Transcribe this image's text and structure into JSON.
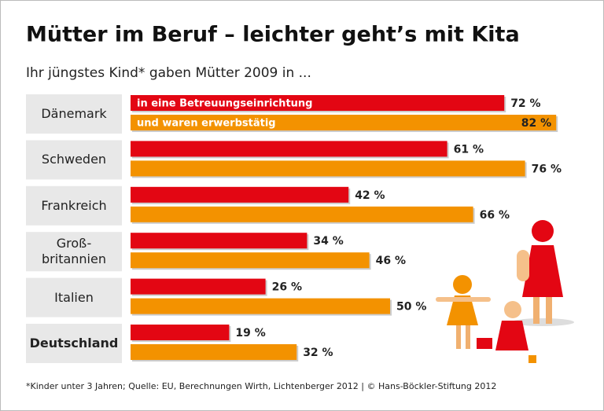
{
  "chart_data": {
    "type": "bar",
    "orientation": "horizontal",
    "title": "Mütter im Beruf – leichter geht’s mit Kita",
    "subtitle": "Ihr jüngstes Kind* gaben Mütter 2009 in ...",
    "categories": [
      "Dänemark",
      "Schweden",
      "Frankreich",
      "Groß-\nbritannien",
      "Italien",
      "Deutschland"
    ],
    "series": [
      {
        "name": "in eine Betreuungseinrichtung",
        "color": "#e30613",
        "values": [
          72,
          61,
          42,
          34,
          26,
          19
        ],
        "value_labels": [
          "72 %",
          "61 %",
          "42 %",
          "34 %",
          "26 %",
          "19 %"
        ]
      },
      {
        "name": "und waren erwerbstätig",
        "color": "#f39200",
        "values": [
          82,
          76,
          66,
          46,
          50,
          32
        ],
        "value_labels": [
          "82 %",
          "76 %",
          "66 %",
          "46 %",
          "50 %",
          "32 %"
        ]
      }
    ],
    "footnote": "*Kinder unter 3 Jahren; Quelle: EU, Berechnungen Wirth, Lichtenberger 2012 | © Hans-Böckler-Stiftung 2012"
  }
}
